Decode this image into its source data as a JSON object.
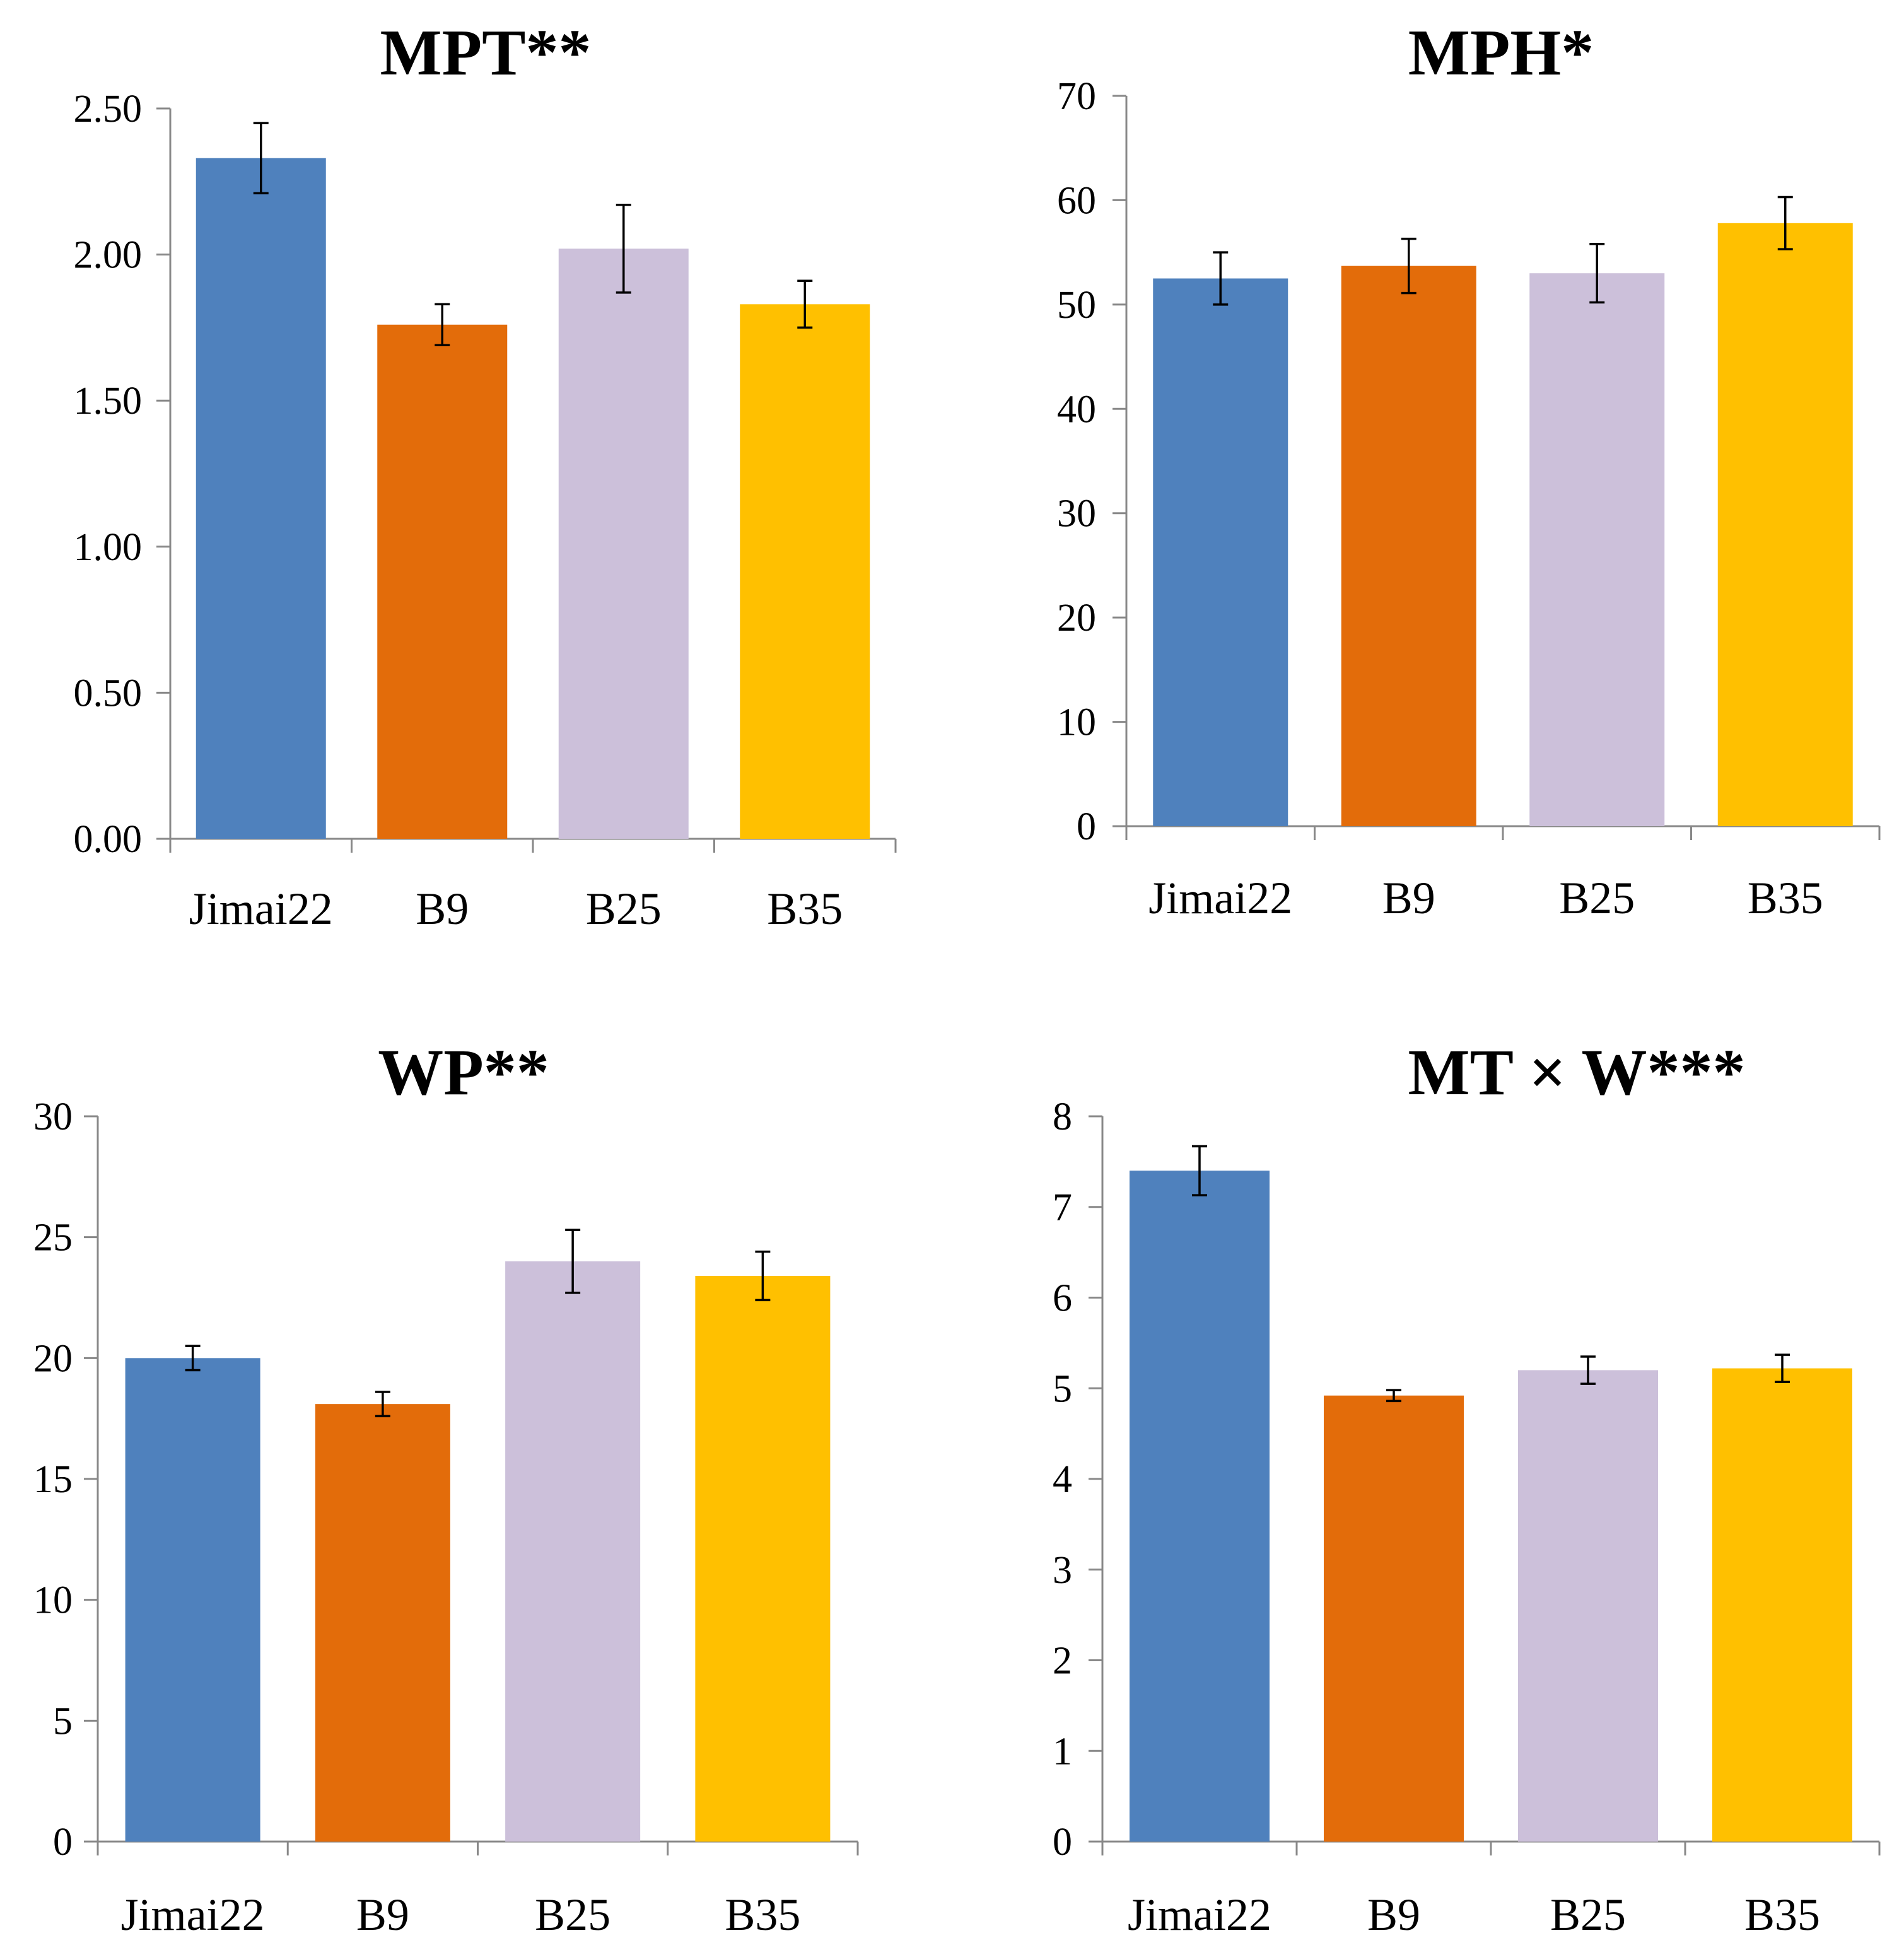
{
  "chart_data": [
    {
      "type": "bar",
      "title": "MPT**",
      "categories": [
        "Jimai22",
        "B9",
        "B25",
        "B35"
      ],
      "values": [
        2.33,
        1.76,
        2.02,
        1.83
      ],
      "errors": [
        0.12,
        0.07,
        0.15,
        0.08
      ],
      "ylim": [
        0,
        2.5
      ],
      "yticks": [
        0,
        0.5,
        1.0,
        1.5,
        2.0,
        2.5
      ],
      "yticklabels": [
        "0.00",
        "0.50",
        "1.00",
        "1.50",
        "2.00",
        "2.50"
      ],
      "xlabel": "",
      "ylabel": "",
      "grid": false
    },
    {
      "type": "bar",
      "title": "MPH*",
      "categories": [
        "Jimai22",
        "B9",
        "B25",
        "B35"
      ],
      "values": [
        52.5,
        53.7,
        53.0,
        57.8
      ],
      "errors": [
        2.5,
        2.6,
        2.8,
        2.5
      ],
      "ylim": [
        0,
        70
      ],
      "yticks": [
        0,
        10,
        20,
        30,
        40,
        50,
        60,
        70
      ],
      "yticklabels": [
        "0",
        "10",
        "20",
        "30",
        "40",
        "50",
        "60",
        "70"
      ],
      "xlabel": "",
      "ylabel": "",
      "grid": false
    },
    {
      "type": "bar",
      "title": "WP**",
      "categories": [
        "Jimai22",
        "B9",
        "B25",
        "B35"
      ],
      "values": [
        20.0,
        18.1,
        24.0,
        23.4
      ],
      "errors": [
        0.5,
        0.5,
        1.3,
        1.0
      ],
      "ylim": [
        0,
        30
      ],
      "yticks": [
        0,
        5,
        10,
        15,
        20,
        25,
        30
      ],
      "yticklabels": [
        "0",
        "5",
        "10",
        "15",
        "20",
        "25",
        "30"
      ],
      "xlabel": "",
      "ylabel": "",
      "grid": false
    },
    {
      "type": "bar",
      "title": "MT × W***",
      "categories": [
        "Jimai22",
        "B9",
        "B25",
        "B35"
      ],
      "values": [
        7.4,
        4.92,
        5.2,
        5.22
      ],
      "errors": [
        0.27,
        0.06,
        0.15,
        0.15
      ],
      "ylim": [
        0,
        8
      ],
      "yticks": [
        0,
        1,
        2,
        3,
        4,
        5,
        6,
        7,
        8
      ],
      "yticklabels": [
        "0",
        "1",
        "2",
        "3",
        "4",
        "5",
        "6",
        "7",
        "8"
      ],
      "xlabel": "",
      "ylabel": "",
      "grid": false
    }
  ],
  "colors": {
    "Jimai22": "#4F81BD",
    "B9": "#E36C0A",
    "B25": "#CCC0DA",
    "B35": "#FFC000"
  }
}
